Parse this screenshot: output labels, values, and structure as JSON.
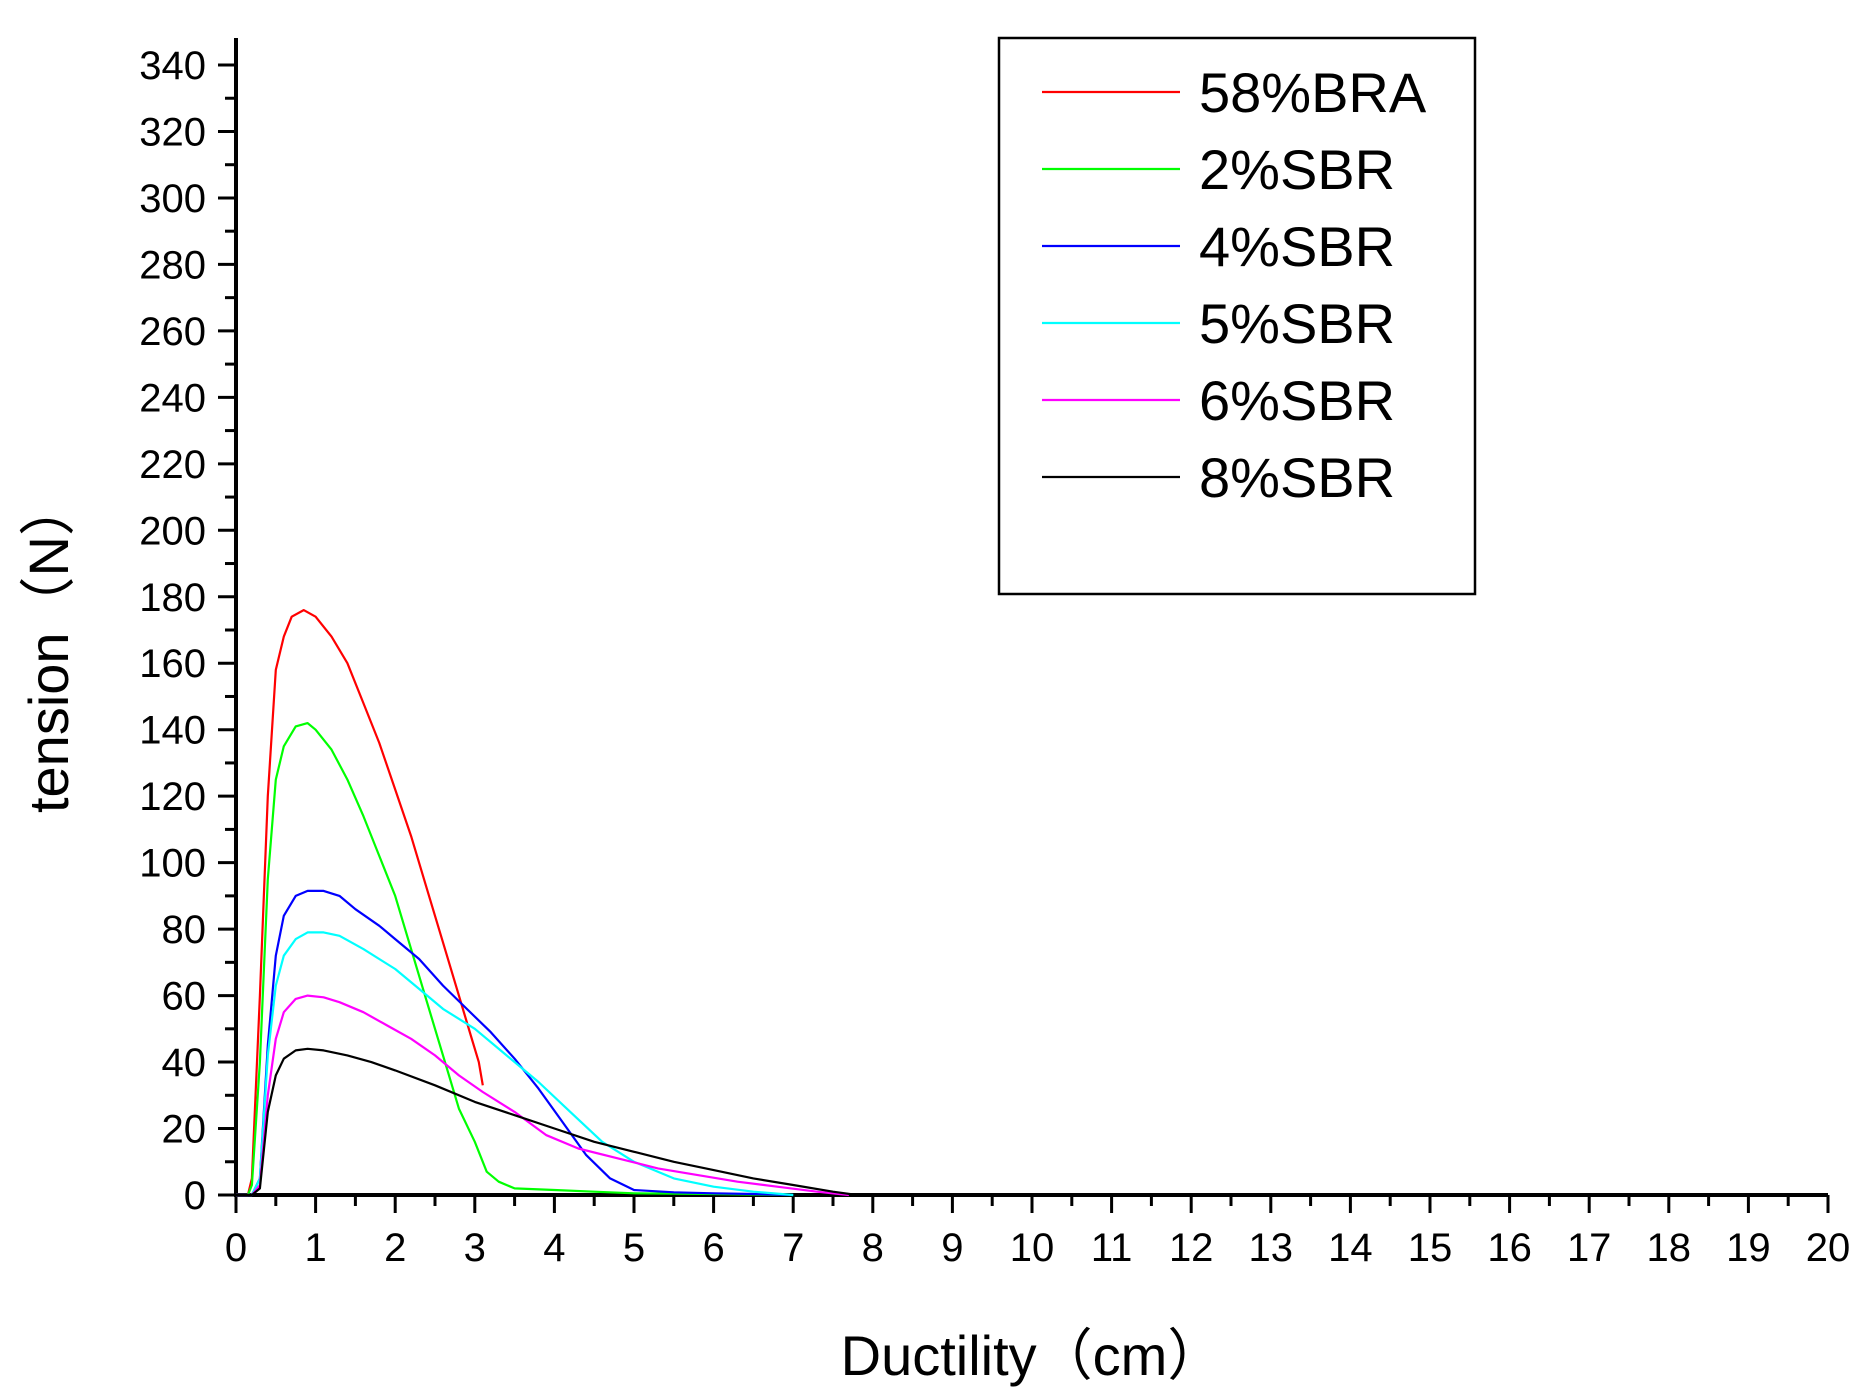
{
  "chart_data": {
    "type": "line",
    "title": "",
    "xlabel": "Ductility（cm）",
    "ylabel": "tension（N）",
    "xlim": [
      0,
      20
    ],
    "ylim": [
      0,
      340
    ],
    "x_ticks": [
      "0",
      "1",
      "2",
      "3",
      "4",
      "5",
      "6",
      "7",
      "8",
      "9",
      "10",
      "11",
      "12",
      "13",
      "14",
      "15",
      "16",
      "17",
      "18",
      "19",
      "20"
    ],
    "y_ticks": [
      "0",
      "20",
      "40",
      "60",
      "80",
      "100",
      "120",
      "140",
      "160",
      "180",
      "200",
      "220",
      "240",
      "260",
      "280",
      "300",
      "320",
      "340"
    ],
    "grid": false,
    "legend_position": "top-right",
    "series": [
      {
        "name": "58%BRA",
        "color": "#ff0000",
        "points": [
          [
            0,
            0
          ],
          [
            0.15,
            0
          ],
          [
            0.2,
            5
          ],
          [
            0.3,
            60
          ],
          [
            0.4,
            120
          ],
          [
            0.5,
            158
          ],
          [
            0.6,
            168
          ],
          [
            0.7,
            174
          ],
          [
            0.85,
            176
          ],
          [
            1.0,
            174
          ],
          [
            1.2,
            168
          ],
          [
            1.4,
            160
          ],
          [
            1.6,
            148
          ],
          [
            1.8,
            136
          ],
          [
            2.0,
            122
          ],
          [
            2.2,
            108
          ],
          [
            2.4,
            92
          ],
          [
            2.6,
            76
          ],
          [
            2.8,
            60
          ],
          [
            2.95,
            48
          ],
          [
            3.05,
            40
          ],
          [
            3.1,
            33
          ]
        ]
      },
      {
        "name": "2%SBR",
        "color": "#00ff00",
        "points": [
          [
            0,
            0
          ],
          [
            0.15,
            0
          ],
          [
            0.2,
            3
          ],
          [
            0.3,
            40
          ],
          [
            0.4,
            95
          ],
          [
            0.5,
            125
          ],
          [
            0.6,
            135
          ],
          [
            0.75,
            141
          ],
          [
            0.9,
            142
          ],
          [
            1.0,
            140
          ],
          [
            1.2,
            134
          ],
          [
            1.4,
            125
          ],
          [
            1.6,
            114
          ],
          [
            1.8,
            102
          ],
          [
            2.0,
            90
          ],
          [
            2.2,
            74
          ],
          [
            2.4,
            58
          ],
          [
            2.6,
            42
          ],
          [
            2.8,
            26
          ],
          [
            3.0,
            16
          ],
          [
            3.15,
            7
          ],
          [
            3.3,
            4
          ],
          [
            3.5,
            2
          ],
          [
            4.0,
            1.5
          ],
          [
            4.5,
            1
          ],
          [
            5.0,
            0.5
          ],
          [
            6.0,
            0.3
          ],
          [
            7.0,
            0
          ]
        ]
      },
      {
        "name": "4%SBR",
        "color": "#0000ff",
        "points": [
          [
            0,
            0
          ],
          [
            0.2,
            0
          ],
          [
            0.3,
            5
          ],
          [
            0.4,
            45
          ],
          [
            0.5,
            72
          ],
          [
            0.6,
            84
          ],
          [
            0.75,
            90
          ],
          [
            0.9,
            91.5
          ],
          [
            1.1,
            91.5
          ],
          [
            1.3,
            90
          ],
          [
            1.5,
            86
          ],
          [
            1.8,
            81
          ],
          [
            2.0,
            77
          ],
          [
            2.3,
            71
          ],
          [
            2.6,
            63
          ],
          [
            2.9,
            56
          ],
          [
            3.2,
            49
          ],
          [
            3.5,
            41
          ],
          [
            3.8,
            32
          ],
          [
            4.1,
            22
          ],
          [
            4.4,
            12
          ],
          [
            4.7,
            5
          ],
          [
            5.0,
            1.5
          ],
          [
            5.5,
            0.8
          ],
          [
            6.0,
            0.5
          ],
          [
            6.5,
            0.3
          ],
          [
            7.0,
            0
          ]
        ]
      },
      {
        "name": "5%SBR",
        "color": "#00ffff",
        "points": [
          [
            0,
            0
          ],
          [
            0.2,
            0
          ],
          [
            0.3,
            5
          ],
          [
            0.4,
            42
          ],
          [
            0.5,
            63
          ],
          [
            0.6,
            72
          ],
          [
            0.75,
            77
          ],
          [
            0.9,
            79
          ],
          [
            1.1,
            79
          ],
          [
            1.3,
            78
          ],
          [
            1.6,
            74
          ],
          [
            2.0,
            68
          ],
          [
            2.3,
            62
          ],
          [
            2.6,
            56
          ],
          [
            3.0,
            50
          ],
          [
            3.4,
            42
          ],
          [
            3.8,
            34
          ],
          [
            4.2,
            25
          ],
          [
            4.6,
            16
          ],
          [
            5.0,
            10
          ],
          [
            5.5,
            5
          ],
          [
            6.0,
            2.5
          ],
          [
            6.5,
            1
          ],
          [
            7.0,
            0
          ]
        ]
      },
      {
        "name": "6%SBR",
        "color": "#ff00ff",
        "points": [
          [
            0,
            0
          ],
          [
            0.2,
            0
          ],
          [
            0.3,
            3
          ],
          [
            0.4,
            30
          ],
          [
            0.5,
            47
          ],
          [
            0.6,
            55
          ],
          [
            0.75,
            59
          ],
          [
            0.9,
            60
          ],
          [
            1.1,
            59.5
          ],
          [
            1.3,
            58
          ],
          [
            1.6,
            55
          ],
          [
            1.9,
            51
          ],
          [
            2.2,
            47
          ],
          [
            2.5,
            42
          ],
          [
            2.8,
            36
          ],
          [
            3.1,
            31
          ],
          [
            3.5,
            25
          ],
          [
            3.9,
            18
          ],
          [
            4.3,
            14
          ],
          [
            4.8,
            11
          ],
          [
            5.3,
            8
          ],
          [
            5.8,
            6
          ],
          [
            6.3,
            4
          ],
          [
            6.8,
            2.5
          ],
          [
            7.3,
            1
          ],
          [
            7.7,
            0
          ]
        ]
      },
      {
        "name": "8%SBR",
        "color": "#000000",
        "points": [
          [
            0,
            0
          ],
          [
            0.2,
            0
          ],
          [
            0.3,
            2
          ],
          [
            0.4,
            25
          ],
          [
            0.5,
            36
          ],
          [
            0.6,
            41
          ],
          [
            0.75,
            43.5
          ],
          [
            0.9,
            44
          ],
          [
            1.1,
            43.5
          ],
          [
            1.4,
            42
          ],
          [
            1.7,
            40
          ],
          [
            2.0,
            37.5
          ],
          [
            2.5,
            33
          ],
          [
            3.0,
            28
          ],
          [
            3.5,
            24
          ],
          [
            4.0,
            20
          ],
          [
            4.5,
            16
          ],
          [
            5.0,
            13
          ],
          [
            5.5,
            10
          ],
          [
            6.0,
            7.5
          ],
          [
            6.5,
            5
          ],
          [
            7.0,
            3
          ],
          [
            7.5,
            1
          ],
          [
            7.8,
            0
          ]
        ]
      }
    ]
  }
}
